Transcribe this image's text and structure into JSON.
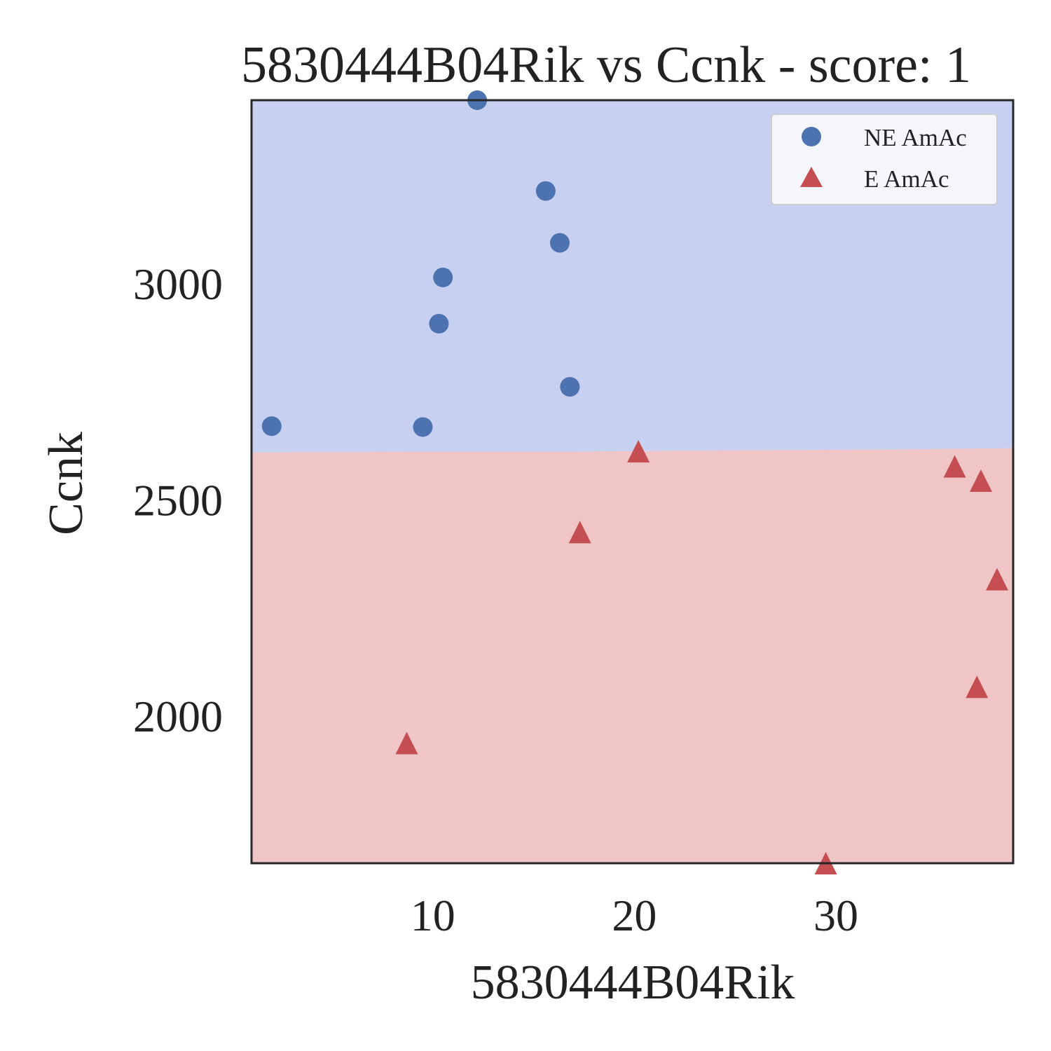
{
  "chart_data": {
    "type": "scatter",
    "title": "5830444B04Rik vs Ccnk - score: 1",
    "xlabel": "5830444B04Rik",
    "ylabel": "Ccnk",
    "xlim": [
      1.0,
      38.8
    ],
    "ylim": [
      1660,
      3425
    ],
    "x_ticks": [
      10,
      20,
      30
    ],
    "y_ticks": [
      2000,
      2500,
      3000
    ],
    "grid": false,
    "legend_position": "top-right",
    "decision_boundary": {
      "description": "horizontal",
      "points": [
        [
          1.0,
          2610
        ],
        [
          9.0,
          2612
        ],
        [
          17.0,
          2612
        ],
        [
          25.0,
          2615
        ],
        [
          33.0,
          2617
        ],
        [
          38.8,
          2620
        ]
      ],
      "above_class": "NE AmAc",
      "below_class": "E AmAc"
    },
    "series": [
      {
        "name": "NE AmAc",
        "marker": "circle",
        "color": "#4c72b0",
        "region_color": "#c8d0f1",
        "points": [
          {
            "x": 12.2,
            "y": 3425
          },
          {
            "x": 15.6,
            "y": 3215
          },
          {
            "x": 16.3,
            "y": 3095
          },
          {
            "x": 10.5,
            "y": 3015
          },
          {
            "x": 10.3,
            "y": 2908
          },
          {
            "x": 16.8,
            "y": 2762
          },
          {
            "x": 2.0,
            "y": 2671
          },
          {
            "x": 9.5,
            "y": 2669
          }
        ]
      },
      {
        "name": "E AmAc",
        "marker": "triangle",
        "color": "#c44e52",
        "region_color": "#efc5c5",
        "points": [
          {
            "x": 20.2,
            "y": 2613
          },
          {
            "x": 35.9,
            "y": 2578
          },
          {
            "x": 37.2,
            "y": 2545
          },
          {
            "x": 17.3,
            "y": 2426
          },
          {
            "x": 38.0,
            "y": 2317
          },
          {
            "x": 37.0,
            "y": 2068
          },
          {
            "x": 8.7,
            "y": 1938
          },
          {
            "x": 29.5,
            "y": 1660
          }
        ]
      }
    ]
  }
}
